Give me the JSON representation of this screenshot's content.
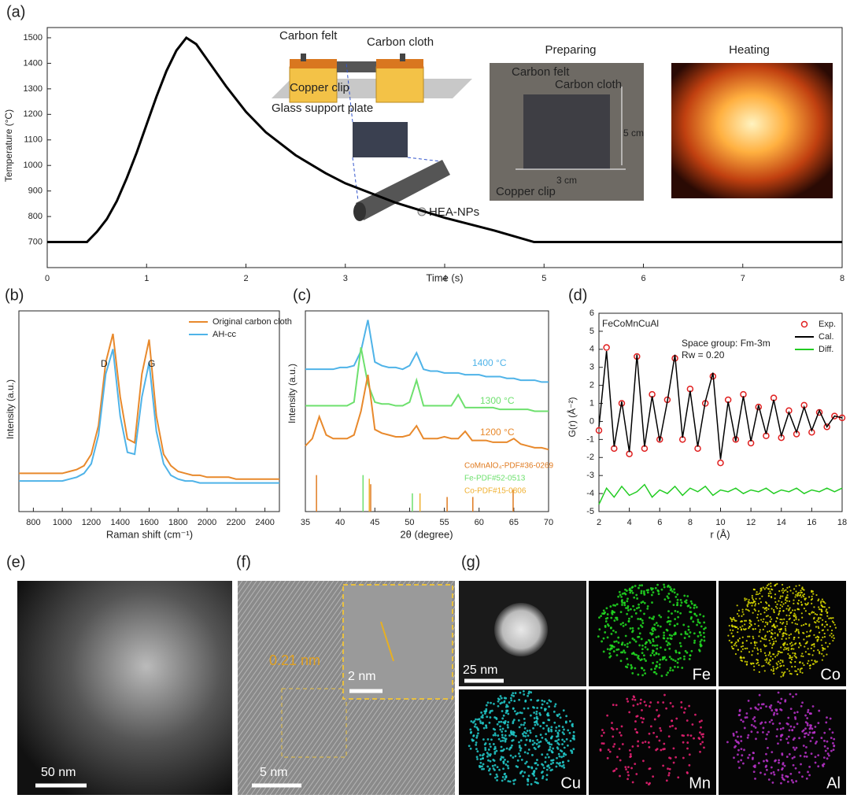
{
  "chart_data": [
    {
      "type": "line",
      "panel_label": "(a)",
      "xlabel": "Time (s)",
      "ylabel": "Temperature (°C)",
      "xlim": [
        0,
        8
      ],
      "ylim": [
        600,
        1540
      ],
      "xticks": [
        0,
        1,
        2,
        3,
        4,
        5,
        6,
        7,
        8
      ],
      "yticks": [
        700,
        800,
        900,
        1000,
        1100,
        1200,
        1300,
        1400,
        1500
      ],
      "color": "#000000",
      "x": [
        0,
        0.4,
        0.5,
        0.6,
        0.7,
        0.8,
        0.9,
        1.0,
        1.1,
        1.2,
        1.3,
        1.4,
        1.5,
        1.6,
        1.8,
        2.0,
        2.2,
        2.5,
        2.8,
        3.0,
        3.5,
        4.0,
        4.5,
        4.9,
        6,
        8
      ],
      "values": [
        700,
        700,
        740,
        790,
        860,
        950,
        1050,
        1160,
        1270,
        1370,
        1450,
        1500,
        1475,
        1420,
        1310,
        1210,
        1130,
        1040,
        970,
        930,
        855,
        795,
        745,
        700,
        700,
        700
      ],
      "annotations": [
        "Carbon felt",
        "Carbon cloth",
        "Copper clip",
        "Glass support plate",
        "HEA-NPs"
      ],
      "photos": [
        {
          "title": "Preparing",
          "labels": [
            "Carbon felt",
            "Carbon cloth",
            "5 cm",
            "3 cm",
            "Copper clip"
          ]
        },
        {
          "title": "Heating"
        }
      ]
    },
    {
      "type": "line",
      "panel_label": "(b)",
      "xlabel": "Raman shift (cm⁻¹)",
      "ylabel": "Intensity (a.u.)",
      "xlim": [
        700,
        2500
      ],
      "ylim": [
        0,
        1.05
      ],
      "xticks": [
        800,
        1000,
        1200,
        1400,
        1600,
        1800,
        2000,
        2200,
        2400
      ],
      "legend": "top right",
      "x": [
        700,
        750,
        800,
        850,
        900,
        950,
        1000,
        1050,
        1100,
        1150,
        1200,
        1250,
        1300,
        1350,
        1400,
        1450,
        1500,
        1550,
        1600,
        1650,
        1700,
        1750,
        1800,
        1850,
        1900,
        1950,
        2000,
        2050,
        2100,
        2150,
        2200,
        2250,
        2300,
        2350,
        2400,
        2450,
        2500
      ],
      "series": [
        {
          "name": "Original carbon cloth",
          "color": "#e8892c",
          "values": [
            0.2,
            0.2,
            0.2,
            0.2,
            0.2,
            0.2,
            0.2,
            0.21,
            0.22,
            0.24,
            0.3,
            0.45,
            0.78,
            0.93,
            0.6,
            0.38,
            0.36,
            0.72,
            0.9,
            0.5,
            0.3,
            0.24,
            0.21,
            0.2,
            0.19,
            0.19,
            0.18,
            0.18,
            0.18,
            0.18,
            0.17,
            0.17,
            0.17,
            0.17,
            0.17,
            0.17,
            0.17
          ]
        },
        {
          "name": "AH-cc",
          "color": "#4fb3e8",
          "values": [
            0.16,
            0.16,
            0.16,
            0.16,
            0.16,
            0.16,
            0.16,
            0.17,
            0.18,
            0.2,
            0.25,
            0.4,
            0.72,
            0.85,
            0.5,
            0.31,
            0.3,
            0.6,
            0.78,
            0.42,
            0.25,
            0.19,
            0.17,
            0.16,
            0.16,
            0.15,
            0.15,
            0.15,
            0.15,
            0.15,
            0.15,
            0.15,
            0.15,
            0.15,
            0.15,
            0.15,
            0.15
          ]
        }
      ],
      "annotations": [
        "D",
        "G"
      ]
    },
    {
      "type": "line",
      "panel_label": "(c)",
      "xlabel": "2θ (degree)",
      "ylabel": "Intensity (a.u.)",
      "xlim": [
        35,
        70
      ],
      "ylim": [
        0,
        1.1
      ],
      "xticks": [
        35,
        40,
        45,
        50,
        55,
        60,
        65,
        70
      ],
      "x": [
        35,
        36,
        37,
        38,
        39,
        40,
        41,
        42,
        43,
        44,
        45,
        46,
        47,
        48,
        49,
        50,
        51,
        52,
        53,
        54,
        55,
        56,
        57,
        58,
        59,
        60,
        61,
        62,
        63,
        64,
        65,
        66,
        67,
        68,
        69,
        70
      ],
      "series": [
        {
          "name": "1400 °C",
          "color": "#4fb3e8",
          "values": [
            0.78,
            0.78,
            0.78,
            0.78,
            0.78,
            0.79,
            0.79,
            0.8,
            0.88,
            1.05,
            0.82,
            0.8,
            0.79,
            0.79,
            0.78,
            0.8,
            0.87,
            0.78,
            0.77,
            0.77,
            0.76,
            0.76,
            0.76,
            0.75,
            0.75,
            0.75,
            0.74,
            0.74,
            0.74,
            0.73,
            0.73,
            0.72,
            0.72,
            0.72,
            0.71,
            0.71
          ]
        },
        {
          "name": "1300 °C",
          "color": "#6ee06e",
          "values": [
            0.58,
            0.58,
            0.58,
            0.58,
            0.58,
            0.58,
            0.58,
            0.6,
            0.9,
            0.7,
            0.6,
            0.59,
            0.59,
            0.58,
            0.58,
            0.6,
            0.72,
            0.58,
            0.58,
            0.58,
            0.58,
            0.58,
            0.64,
            0.57,
            0.57,
            0.57,
            0.57,
            0.57,
            0.56,
            0.56,
            0.56,
            0.56,
            0.56,
            0.55,
            0.55,
            0.55
          ]
        },
        {
          "name": "1200 °C",
          "color": "#e8892c",
          "values": [
            0.36,
            0.4,
            0.52,
            0.42,
            0.4,
            0.4,
            0.4,
            0.42,
            0.55,
            0.75,
            0.45,
            0.43,
            0.42,
            0.41,
            0.41,
            0.42,
            0.47,
            0.4,
            0.4,
            0.4,
            0.41,
            0.4,
            0.4,
            0.44,
            0.39,
            0.39,
            0.39,
            0.38,
            0.38,
            0.38,
            0.4,
            0.37,
            0.36,
            0.35,
            0.35,
            0.34
          ]
        }
      ],
      "references": [
        {
          "name": "CoMnAlO₄-PDF#36-0269",
          "color": "#e07b20",
          "positions": [
            36.6,
            44.4,
            55.4,
            59.1,
            64.9
          ],
          "heights": [
            0.2,
            0.15,
            0.08,
            0.08,
            0.12
          ]
        },
        {
          "name": "Fe-PDF#52-0513",
          "color": "#6ee06e",
          "positions": [
            43.3,
            50.4
          ],
          "heights": [
            0.2,
            0.1
          ]
        },
        {
          "name": "Co-PDF#15-0806",
          "color": "#f0b030",
          "positions": [
            44.2,
            51.5
          ],
          "heights": [
            0.18,
            0.1
          ]
        }
      ]
    },
    {
      "type": "line",
      "panel_label": "(d)",
      "xlabel": "r (Å)",
      "ylabel": "G(r) (Å⁻²)",
      "xlim": [
        2,
        18
      ],
      "ylim": [
        -5,
        6
      ],
      "xticks": [
        2,
        4,
        6,
        8,
        10,
        12,
        14,
        16,
        18
      ],
      "yticks": [
        -5,
        -4,
        -3,
        -2,
        -1,
        0,
        1,
        2,
        3,
        4,
        5,
        6
      ],
      "legend": "top right",
      "x": [
        2,
        2.5,
        3,
        3.5,
        4,
        4.5,
        5,
        5.5,
        6,
        6.5,
        7,
        7.5,
        8,
        8.5,
        9,
        9.5,
        10,
        10.5,
        11,
        11.5,
        12,
        12.5,
        13,
        13.5,
        14,
        14.5,
        15,
        15.5,
        16,
        16.5,
        17,
        17.5,
        18
      ],
      "series": [
        {
          "name": "Exp.",
          "color": "#e02020",
          "style": "markers",
          "values": [
            -0.5,
            4.1,
            -1.5,
            1.0,
            -1.8,
            3.6,
            -1.5,
            1.5,
            -1.0,
            1.2,
            3.5,
            -1.0,
            1.8,
            -1.5,
            1.0,
            2.5,
            -2.3,
            1.2,
            -1.0,
            1.5,
            -1.2,
            0.8,
            -0.8,
            1.3,
            -0.9,
            0.6,
            -0.7,
            0.9,
            -0.6,
            0.5,
            -0.3,
            0.3,
            0.2
          ]
        },
        {
          "name": "Cal.",
          "color": "#000000",
          "style": "line",
          "values": [
            -0.3,
            3.9,
            -1.4,
            1.1,
            -1.7,
            3.7,
            -1.4,
            1.4,
            -1.1,
            1.1,
            3.7,
            -0.9,
            1.7,
            -1.4,
            1.1,
            2.7,
            -2.1,
            1.1,
            -1.1,
            1.4,
            -1.1,
            0.9,
            -0.7,
            1.2,
            -0.8,
            0.5,
            -0.6,
            0.8,
            -0.5,
            0.6,
            -0.3,
            0.3,
            0.2
          ]
        },
        {
          "name": "Diff.",
          "color": "#22cc22",
          "style": "line",
          "values": [
            -4.6,
            -3.7,
            -4.2,
            -3.6,
            -4.1,
            -3.9,
            -3.5,
            -4.2,
            -3.8,
            -4.0,
            -3.6,
            -4.1,
            -3.7,
            -3.9,
            -3.6,
            -4.1,
            -3.8,
            -3.9,
            -3.7,
            -4.0,
            -3.8,
            -3.9,
            -3.7,
            -4.0,
            -3.8,
            -3.9,
            -3.7,
            -4.0,
            -3.8,
            -3.9,
            -3.7,
            -3.9,
            -3.7
          ]
        }
      ],
      "annotations": [
        "FeCoMnCuAl",
        "Space group: Fm-3m",
        "Rw = 0.20"
      ]
    }
  ],
  "images": {
    "e": {
      "panel_label": "(e)",
      "scale_bar": "50 nm"
    },
    "f": {
      "panel_label": "(f)",
      "scale_bar": "5 nm",
      "spacing": "0.21 nm",
      "inset_scale_bar": "2 nm"
    },
    "g": {
      "panel_label": "(g)",
      "scale_bar": "25 nm",
      "maps": [
        "Fe",
        "Co",
        "Cu",
        "Mn",
        "Al"
      ],
      "map_colors": [
        "#22dd22",
        "#e0e000",
        "#22cccc",
        "#ee2277",
        "#bb33cc"
      ]
    }
  }
}
